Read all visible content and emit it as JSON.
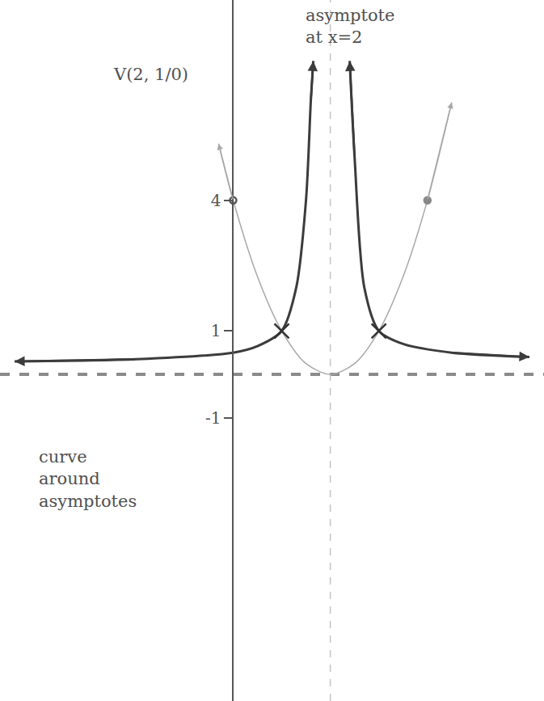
{
  "chart_data": {
    "type": "line",
    "xlim": [
      -4.8,
      6.4
    ],
    "ylim": [
      -7.5,
      8.6
    ],
    "xticks": [],
    "yticks": [
      -1,
      1,
      4
    ],
    "tick_labels": "y",
    "grid": false,
    "vertical_asymptote": 2,
    "horizontal_asymptote": 0,
    "series": [
      {
        "type": "line",
        "color": "#a8a8a8",
        "line_style": "solid",
        "marker": "arrow",
        "x": [
          -0.3,
          0,
          0.5,
          1,
          1.5,
          2,
          2.5,
          3,
          3.5,
          4,
          4.5
        ],
        "values": [
          5.3,
          4,
          2.25,
          1,
          0.25,
          0,
          0.25,
          1,
          2.25,
          4,
          6.25
        ]
      },
      {
        "type": "line",
        "color": "#3c3c3c",
        "line_style": "solid",
        "marker": "arrow",
        "x": [
          -4.5,
          -2,
          0,
          0.5,
          1,
          1.3,
          1.5,
          1.6,
          1.65
        ],
        "values": [
          0.3,
          0.35,
          0.5,
          0.65,
          1,
          2,
          4,
          6.3,
          7.2
        ]
      },
      {
        "type": "line",
        "color": "#3c3c3c",
        "line_style": "solid",
        "marker": "arrow",
        "x": [
          2.4,
          2.5,
          2.7,
          3,
          3.5,
          4.5,
          6.1
        ],
        "values": [
          7.2,
          5,
          2,
          1,
          0.7,
          0.5,
          0.4
        ]
      },
      {
        "type": "scatter",
        "color": "#555555",
        "marker": "circle-open",
        "x": [
          0
        ],
        "values": [
          4
        ]
      },
      {
        "type": "scatter",
        "color": "#888888",
        "marker": "circle",
        "x": [
          4
        ],
        "values": [
          4
        ]
      },
      {
        "type": "scatter",
        "color": "#333333",
        "marker": "x",
        "x": [
          1,
          3
        ],
        "values": [
          1,
          1
        ]
      }
    ],
    "annotations": [
      {
        "text": "asymptote at x=2",
        "x": 2.4,
        "y": 8.0
      },
      {
        "text": "V(2, 1/0)",
        "x": -1.7,
        "y": 6.9
      },
      {
        "text": "curve around asymptotes",
        "x": -3.0,
        "y": -2.4
      }
    ]
  }
}
